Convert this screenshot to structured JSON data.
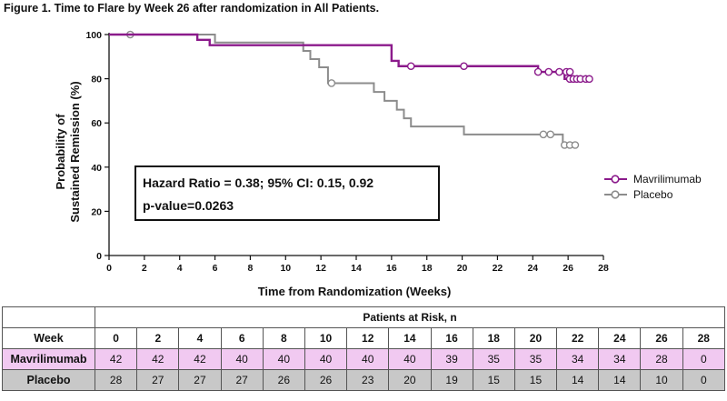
{
  "figure_title": "Figure 1. Time to Flare by Week 26 after randomization in All Patients.",
  "annotation": {
    "line1": "Hazard Ratio = 0.38; 95% CI: 0.15, 0.92",
    "line2": "p-value=0.0263"
  },
  "colors": {
    "mavrilimumab": "#8b1a8b",
    "placebo": "#8c8c8c",
    "mav_row": "#f1c9f1",
    "placebo_row": "#c8c8c8"
  },
  "chart_data": {
    "type": "line",
    "step": true,
    "xlabel": "Time from Randomization (Weeks)",
    "ylabel_lines": [
      "Probability of",
      "Sustained Remission (%)"
    ],
    "xlim": [
      0,
      28
    ],
    "ylim": [
      0,
      100
    ],
    "xticks": [
      0,
      2,
      4,
      6,
      8,
      10,
      12,
      14,
      16,
      18,
      20,
      22,
      24,
      26,
      28
    ],
    "yticks": [
      0,
      20,
      40,
      60,
      80,
      100
    ],
    "grid": false,
    "legend_position": "right",
    "series": [
      {
        "name": "Mavrilimumab",
        "steps": [
          [
            0,
            100
          ],
          [
            5.0,
            97.6
          ],
          [
            5.7,
            95.2
          ],
          [
            16.0,
            88.1
          ],
          [
            16.4,
            85.7
          ],
          [
            24.3,
            83.1
          ],
          [
            25.8,
            79.9
          ],
          [
            27.2,
            79.9
          ]
        ],
        "censored": [
          [
            17.1,
            85.7
          ],
          [
            20.1,
            85.7
          ],
          [
            24.3,
            83.1
          ],
          [
            24.9,
            83.1
          ],
          [
            25.5,
            83.1
          ],
          [
            25.9,
            83.1
          ],
          [
            26.1,
            83.1
          ],
          [
            26.1,
            79.9
          ],
          [
            26.3,
            79.9
          ],
          [
            26.5,
            79.9
          ],
          [
            26.7,
            79.9
          ],
          [
            27.0,
            79.9
          ],
          [
            27.2,
            79.9
          ]
        ]
      },
      {
        "name": "Placebo",
        "steps": [
          [
            0,
            100
          ],
          [
            6.0,
            96.4
          ],
          [
            11.0,
            92.6
          ],
          [
            11.4,
            88.9
          ],
          [
            11.9,
            85.2
          ],
          [
            12.4,
            78.0
          ],
          [
            15.0,
            74.0
          ],
          [
            15.6,
            70.0
          ],
          [
            16.3,
            66.0
          ],
          [
            16.7,
            62.1
          ],
          [
            17.1,
            58.4
          ],
          [
            20.1,
            54.8
          ],
          [
            25.7,
            50.0
          ],
          [
            26.4,
            50.0
          ]
        ],
        "censored": [
          [
            1.2,
            100
          ],
          [
            12.6,
            78.0
          ],
          [
            24.6,
            54.8
          ],
          [
            25.0,
            54.8
          ],
          [
            25.8,
            50.0
          ],
          [
            26.1,
            50.0
          ],
          [
            26.4,
            50.0
          ]
        ]
      }
    ]
  },
  "risk_table": {
    "header": "Patients at Risk, n",
    "week_label": "Week",
    "weeks": [
      "0",
      "2",
      "4",
      "6",
      "8",
      "10",
      "12",
      "14",
      "16",
      "18",
      "20",
      "22",
      "24",
      "26",
      "28"
    ],
    "rows": [
      {
        "label": "Mavrilimumab",
        "values": [
          "42",
          "42",
          "42",
          "40",
          "40",
          "40",
          "40",
          "40",
          "39",
          "35",
          "35",
          "34",
          "34",
          "28",
          "0"
        ]
      },
      {
        "label": "Placebo",
        "values": [
          "28",
          "27",
          "27",
          "27",
          "26",
          "26",
          "23",
          "20",
          "19",
          "15",
          "15",
          "14",
          "14",
          "10",
          "0"
        ]
      }
    ]
  }
}
